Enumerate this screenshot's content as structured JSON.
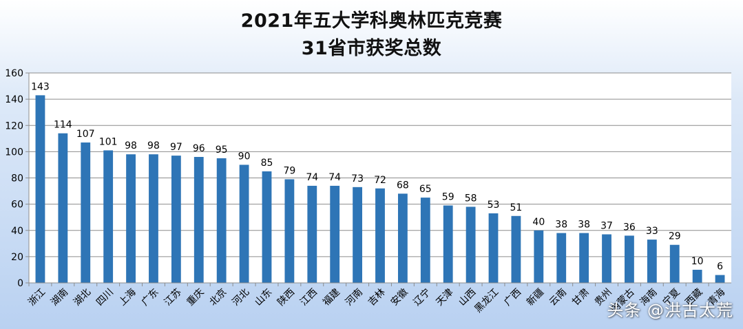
{
  "chart_data": {
    "type": "bar",
    "title": "2021年五大学科奥林匹克竞赛",
    "subtitle": "31省市获奖总数",
    "categories": [
      "浙江",
      "湖南",
      "湖北",
      "四川",
      "上海",
      "广东",
      "江苏",
      "重庆",
      "北京",
      "河北",
      "山东",
      "陕西",
      "江西",
      "福建",
      "河南",
      "吉林",
      "安徽",
      "辽宁",
      "天津",
      "山西",
      "黑龙江",
      "广西",
      "新疆",
      "云南",
      "甘肃",
      "贵州",
      "内蒙古",
      "海南",
      "宁夏",
      "西藏",
      "青海"
    ],
    "values": [
      143,
      114,
      107,
      101,
      98,
      98,
      97,
      96,
      95,
      90,
      85,
      79,
      74,
      74,
      73,
      72,
      68,
      65,
      59,
      58,
      53,
      51,
      40,
      38,
      38,
      37,
      36,
      33,
      29,
      10,
      6
    ],
    "ylim": [
      0,
      160
    ],
    "yticks": [
      0,
      20,
      40,
      60,
      80,
      100,
      120,
      140,
      160
    ],
    "grid": true,
    "bar_color": "#2e75b6",
    "plot_background": "#ffffff"
  },
  "watermark": "头条 @洪古太荒"
}
